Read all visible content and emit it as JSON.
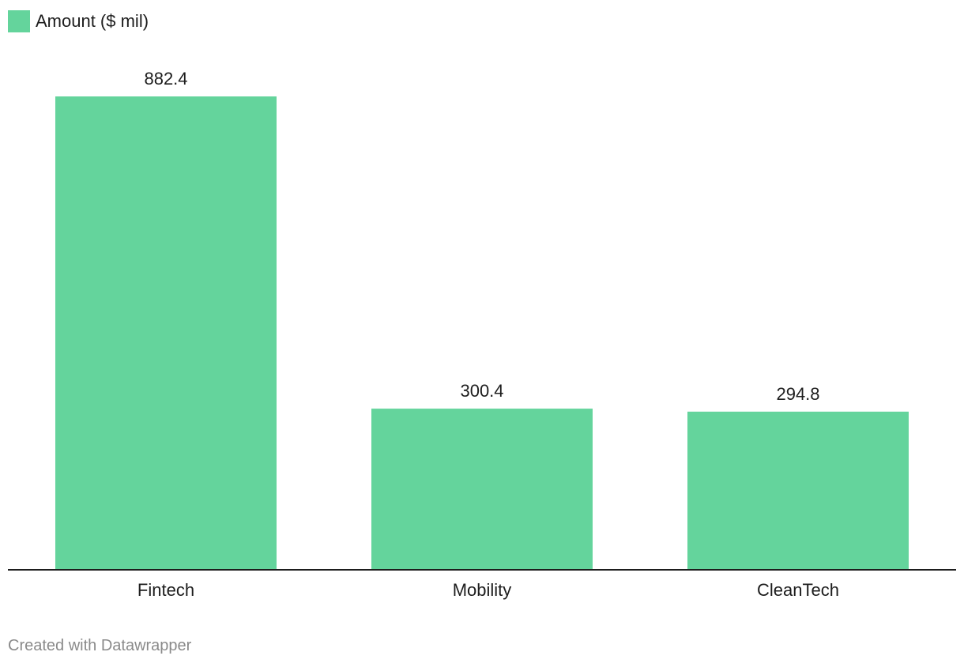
{
  "legend": {
    "label": "Amount ($ mil)",
    "color": "#64d49c"
  },
  "chart_data": {
    "type": "bar",
    "categories": [
      "Fintech",
      "Mobility",
      "CleanTech"
    ],
    "series": [
      {
        "name": "Amount ($ mil)",
        "values": [
          882.4,
          300.4,
          294.8
        ],
        "labels": [
          "882.4",
          "300.4",
          "294.8"
        ]
      }
    ],
    "xlabel": "",
    "ylabel": "",
    "ylim": [
      0,
      882.4
    ],
    "grid": false,
    "legend_position": "top-left",
    "bar_color": "#64d49c",
    "baseline_color": "#1d1d1d"
  },
  "footer": {
    "credit": "Created with Datawrapper"
  }
}
